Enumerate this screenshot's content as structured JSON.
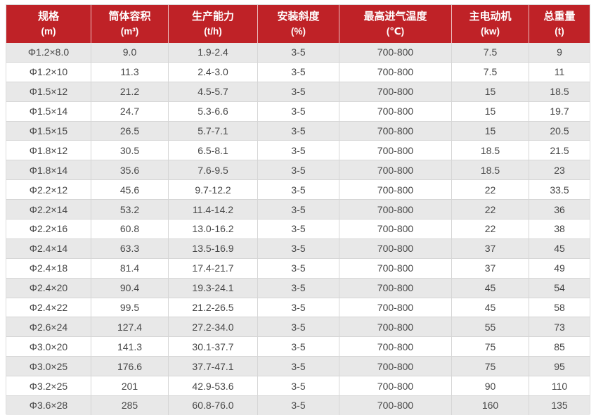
{
  "chart_data": {
    "type": "table",
    "columns": [
      {
        "title": "规格",
        "unit": "(m)"
      },
      {
        "title": "筒体容积",
        "unit": "(m³)"
      },
      {
        "title": "生产能力",
        "unit": "(t/h)"
      },
      {
        "title": "安装斜度",
        "unit": "(%)"
      },
      {
        "title": "最高进气温度",
        "unit": "(℃)"
      },
      {
        "title": "主电动机",
        "unit": "(kw)"
      },
      {
        "title": "总重量",
        "unit": "(t)"
      }
    ],
    "rows": [
      [
        "Φ1.2×8.0",
        "9.0",
        "1.9-2.4",
        "3-5",
        "700-800",
        "7.5",
        "9"
      ],
      [
        "Φ1.2×10",
        "11.3",
        "2.4-3.0",
        "3-5",
        "700-800",
        "7.5",
        "11"
      ],
      [
        "Φ1.5×12",
        "21.2",
        "4.5-5.7",
        "3-5",
        "700-800",
        "15",
        "18.5"
      ],
      [
        "Φ1.5×14",
        "24.7",
        "5.3-6.6",
        "3-5",
        "700-800",
        "15",
        "19.7"
      ],
      [
        "Φ1.5×15",
        "26.5",
        "5.7-7.1",
        "3-5",
        "700-800",
        "15",
        "20.5"
      ],
      [
        "Φ1.8×12",
        "30.5",
        "6.5-8.1",
        "3-5",
        "700-800",
        "18.5",
        "21.5"
      ],
      [
        "Φ1.8×14",
        "35.6",
        "7.6-9.5",
        "3-5",
        "700-800",
        "18.5",
        "23"
      ],
      [
        "Φ2.2×12",
        "45.6",
        "9.7-12.2",
        "3-5",
        "700-800",
        "22",
        "33.5"
      ],
      [
        "Φ2.2×14",
        "53.2",
        "11.4-14.2",
        "3-5",
        "700-800",
        "22",
        "36"
      ],
      [
        "Φ2.2×16",
        "60.8",
        "13.0-16.2",
        "3-5",
        "700-800",
        "22",
        "38"
      ],
      [
        "Φ2.4×14",
        "63.3",
        "13.5-16.9",
        "3-5",
        "700-800",
        "37",
        "45"
      ],
      [
        "Φ2.4×18",
        "81.4",
        "17.4-21.7",
        "3-5",
        "700-800",
        "37",
        "49"
      ],
      [
        "Φ2.4×20",
        "90.4",
        "19.3-24.1",
        "3-5",
        "700-800",
        "45",
        "54"
      ],
      [
        "Φ2.4×22",
        "99.5",
        "21.2-26.5",
        "3-5",
        "700-800",
        "45",
        "58"
      ],
      [
        "Φ2.6×24",
        "127.4",
        "27.2-34.0",
        "3-5",
        "700-800",
        "55",
        "73"
      ],
      [
        "Φ3.0×20",
        "141.3",
        "30.1-37.7",
        "3-5",
        "700-800",
        "75",
        "85"
      ],
      [
        "Φ3.0×25",
        "176.6",
        "37.7-47.1",
        "3-5",
        "700-800",
        "75",
        "95"
      ],
      [
        "Φ3.2×25",
        "201",
        "42.9-53.6",
        "3-5",
        "700-800",
        "90",
        "110"
      ],
      [
        "Φ3.6×28",
        "285",
        "60.8-76.0",
        "3-5",
        "700-800",
        "160",
        "135"
      ]
    ]
  },
  "colors": {
    "header_bg": "#bf2227",
    "header_text": "#ffffff",
    "row_alt_bg": "#e8e8e8",
    "row_bg": "#ffffff",
    "border": "#d6d6d6",
    "body_text": "#474747"
  }
}
